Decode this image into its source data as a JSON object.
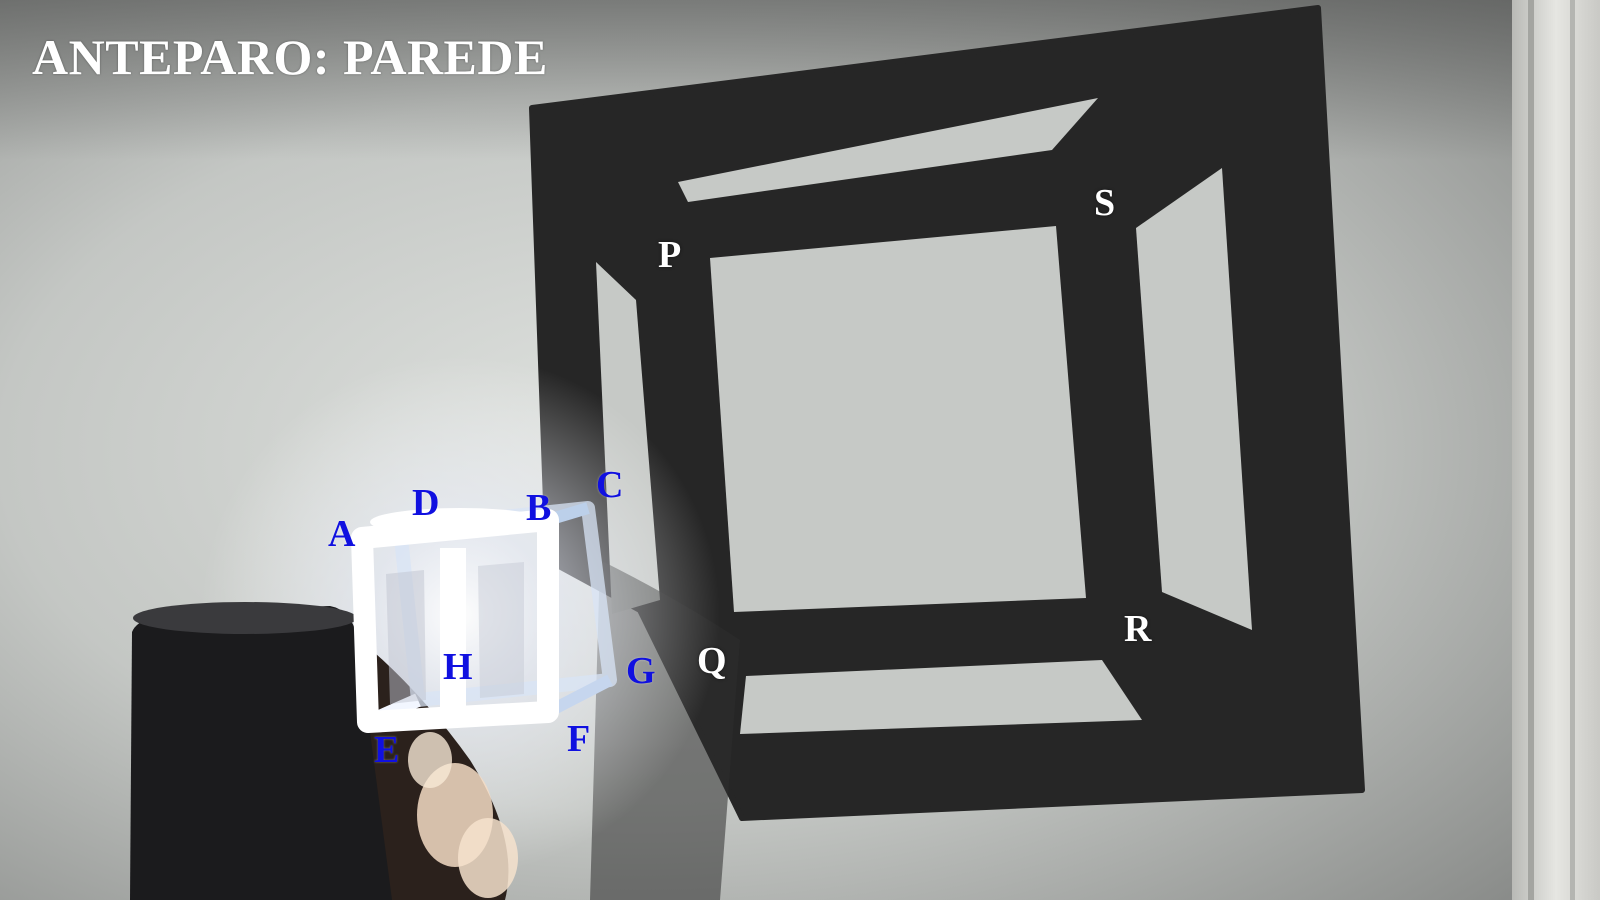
{
  "caption": {
    "text": "ANTEPARO: PAREDE",
    "color": "#ffffff"
  },
  "cube_labels": {
    "color": "#1010e0",
    "A": "A",
    "B": "B",
    "C": "C",
    "D": "D",
    "E": "E",
    "F": "F",
    "G": "G",
    "H": "H"
  },
  "shadow_labels": {
    "color": "#ffffff",
    "P": "P",
    "Q": "Q",
    "R": "R",
    "S": "S"
  },
  "colors": {
    "wall": "#c9ccc9",
    "shadow": "#262626",
    "light": "#ffffff",
    "door_frame": "#dcdcd8"
  }
}
